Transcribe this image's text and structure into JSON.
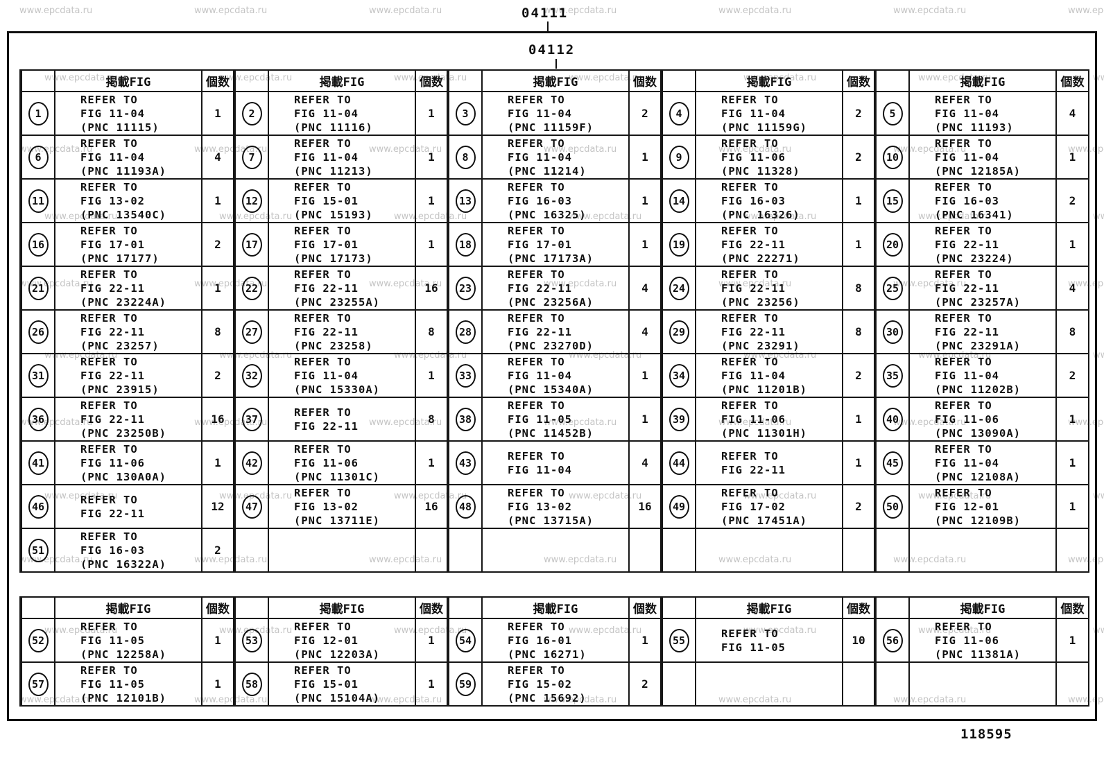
{
  "page": {
    "top_label": "04111",
    "inner_label": "04112",
    "doc_number": "118595",
    "watermark": "www.epcdata.ru",
    "refer_label": "REFER TO"
  },
  "table1": {
    "headers": {
      "fig": "掲載FIG",
      "qty": "個数"
    },
    "rows": [
      [
        {
          "n": "1",
          "fig": "FIG 11-04",
          "pnc": "(PNC 11115)",
          "qty": "1"
        },
        {
          "n": "2",
          "fig": "FIG 11-04",
          "pnc": "(PNC 11116)",
          "qty": "1"
        },
        {
          "n": "3",
          "fig": "FIG 11-04",
          "pnc": "(PNC 11159F)",
          "qty": "2"
        },
        {
          "n": "4",
          "fig": "FIG 11-04",
          "pnc": "(PNC 11159G)",
          "qty": "2"
        },
        {
          "n": "5",
          "fig": "FIG 11-04",
          "pnc": "(PNC 11193)",
          "qty": "4"
        }
      ],
      [
        {
          "n": "6",
          "fig": "FIG 11-04",
          "pnc": "(PNC 11193A)",
          "qty": "4"
        },
        {
          "n": "7",
          "fig": "FIG 11-04",
          "pnc": "(PNC 11213)",
          "qty": "1"
        },
        {
          "n": "8",
          "fig": "FIG 11-04",
          "pnc": "(PNC 11214)",
          "qty": "1"
        },
        {
          "n": "9",
          "fig": "FIG 11-06",
          "pnc": "(PNC 11328)",
          "qty": "2"
        },
        {
          "n": "10",
          "fig": "FIG 11-04",
          "pnc": "(PNC 12185A)",
          "qty": "1"
        }
      ],
      [
        {
          "n": "11",
          "fig": "FIG 13-02",
          "pnc": "(PNC 13540C)",
          "qty": "1"
        },
        {
          "n": "12",
          "fig": "FIG 15-01",
          "pnc": "(PNC 15193)",
          "qty": "1"
        },
        {
          "n": "13",
          "fig": "FIG 16-03",
          "pnc": "(PNC 16325)",
          "qty": "1"
        },
        {
          "n": "14",
          "fig": "FIG 16-03",
          "pnc": "(PNC 16326)",
          "qty": "1"
        },
        {
          "n": "15",
          "fig": "FIG 16-03",
          "pnc": "(PNC 16341)",
          "qty": "2"
        }
      ],
      [
        {
          "n": "16",
          "fig": "FIG 17-01",
          "pnc": "(PNC 17177)",
          "qty": "2"
        },
        {
          "n": "17",
          "fig": "FIG 17-01",
          "pnc": "(PNC 17173)",
          "qty": "1"
        },
        {
          "n": "18",
          "fig": "FIG 17-01",
          "pnc": "(PNC 17173A)",
          "qty": "1"
        },
        {
          "n": "19",
          "fig": "FIG 22-11",
          "pnc": "(PNC 22271)",
          "qty": "1"
        },
        {
          "n": "20",
          "fig": "FIG 22-11",
          "pnc": "(PNC 23224)",
          "qty": "1"
        }
      ],
      [
        {
          "n": "21",
          "fig": "FIG 22-11",
          "pnc": "(PNC 23224A)",
          "qty": "1"
        },
        {
          "n": "22",
          "fig": "FIG 22-11",
          "pnc": "(PNC 23255A)",
          "qty": "16"
        },
        {
          "n": "23",
          "fig": "FIG 22-11",
          "pnc": "(PNC 23256A)",
          "qty": "4"
        },
        {
          "n": "24",
          "fig": "FIG 22-11",
          "pnc": "(PNC 23256)",
          "qty": "8"
        },
        {
          "n": "25",
          "fig": "FIG 22-11",
          "pnc": "(PNC 23257A)",
          "qty": "4"
        }
      ],
      [
        {
          "n": "26",
          "fig": "FIG 22-11",
          "pnc": "(PNC 23257)",
          "qty": "8"
        },
        {
          "n": "27",
          "fig": "FIG 22-11",
          "pnc": "(PNC 23258)",
          "qty": "8"
        },
        {
          "n": "28",
          "fig": "FIG 22-11",
          "pnc": "(PNC 23270D)",
          "qty": "4"
        },
        {
          "n": "29",
          "fig": "FIG 22-11",
          "pnc": "(PNC 23291)",
          "qty": "8"
        },
        {
          "n": "30",
          "fig": "FIG 22-11",
          "pnc": "(PNC 23291A)",
          "qty": "8"
        }
      ],
      [
        {
          "n": "31",
          "fig": "FIG 22-11",
          "pnc": "(PNC 23915)",
          "qty": "2"
        },
        {
          "n": "32",
          "fig": "FIG 11-04",
          "pnc": "(PNC 15330A)",
          "qty": "1"
        },
        {
          "n": "33",
          "fig": "FIG 11-04",
          "pnc": "(PNC 15340A)",
          "qty": "1"
        },
        {
          "n": "34",
          "fig": "FIG 11-04",
          "pnc": "(PNC 11201B)",
          "qty": "2"
        },
        {
          "n": "35",
          "fig": "FIG 11-04",
          "pnc": "(PNC 11202B)",
          "qty": "2"
        }
      ],
      [
        {
          "n": "36",
          "fig": "FIG 22-11",
          "pnc": "(PNC 23250B)",
          "qty": "16"
        },
        {
          "n": "37",
          "fig": "FIG 22-11",
          "pnc": null,
          "qty": "8"
        },
        {
          "n": "38",
          "fig": "FIG 11-05",
          "pnc": "(PNC 11452B)",
          "qty": "1"
        },
        {
          "n": "39",
          "fig": "FIG 11-06",
          "pnc": "(PNC 11301H)",
          "qty": "1"
        },
        {
          "n": "40",
          "fig": "FIG 11-06",
          "pnc": "(PNC 13090A)",
          "qty": "1"
        }
      ],
      [
        {
          "n": "41",
          "fig": "FIG 11-06",
          "pnc": "(PNC 130A0A)",
          "qty": "1"
        },
        {
          "n": "42",
          "fig": "FIG 11-06",
          "pnc": "(PNC 11301C)",
          "qty": "1"
        },
        {
          "n": "43",
          "fig": "FIG 11-04",
          "pnc": null,
          "qty": "4"
        },
        {
          "n": "44",
          "fig": "FIG 22-11",
          "pnc": null,
          "qty": "1"
        },
        {
          "n": "45",
          "fig": "FIG 11-04",
          "pnc": "(PNC 12108A)",
          "qty": "1"
        }
      ],
      [
        {
          "n": "46",
          "fig": "FIG 22-11",
          "pnc": null,
          "qty": "12"
        },
        {
          "n": "47",
          "fig": "FIG 13-02",
          "pnc": "(PNC 13711E)",
          "qty": "16"
        },
        {
          "n": "48",
          "fig": "FIG 13-02",
          "pnc": "(PNC 13715A)",
          "qty": "16"
        },
        {
          "n": "49",
          "fig": "FIG 17-02",
          "pnc": "(PNC 17451A)",
          "qty": "2"
        },
        {
          "n": "50",
          "fig": "FIG 12-01",
          "pnc": "(PNC 12109B)",
          "qty": "1"
        }
      ],
      [
        {
          "n": "51",
          "fig": "FIG 16-03",
          "pnc": "(PNC 16322A)",
          "qty": "2"
        },
        null,
        null,
        null,
        null
      ]
    ]
  },
  "table2": {
    "headers": {
      "fig": "掲載FIG",
      "qty": "個数"
    },
    "rows": [
      [
        {
          "n": "52",
          "fig": "FIG 11-05",
          "pnc": "(PNC 12258A)",
          "qty": "1"
        },
        {
          "n": "53",
          "fig": "FIG 12-01",
          "pnc": "(PNC 12203A)",
          "qty": "1"
        },
        {
          "n": "54",
          "fig": "FIG 16-01",
          "pnc": "(PNC 16271)",
          "qty": "1"
        },
        {
          "n": "55",
          "fig": "FIG 11-05",
          "pnc": null,
          "qty": "10"
        },
        {
          "n": "56",
          "fig": "FIG 11-06",
          "pnc": "(PNC 11381A)",
          "qty": "1"
        }
      ],
      [
        {
          "n": "57",
          "fig": "FIG 11-05",
          "pnc": "(PNC 12101B)",
          "qty": "1"
        },
        {
          "n": "58",
          "fig": "FIG 15-01",
          "pnc": "(PNC 15104A)",
          "qty": "1"
        },
        {
          "n": "59",
          "fig": "FIG 15-02",
          "pnc": "(PNC 15692)",
          "qty": "2"
        },
        null,
        null
      ]
    ]
  }
}
